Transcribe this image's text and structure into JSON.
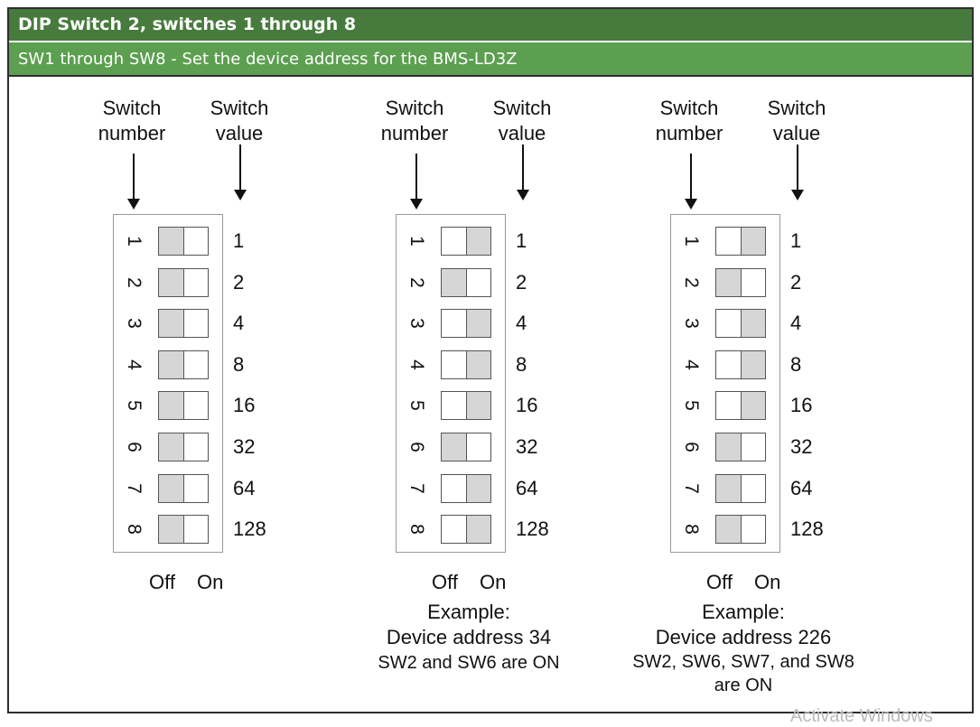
{
  "header": {
    "title": "DIP  Switch 2, switches 1 through 8",
    "subtitle": "SW1 through SW8 - Set the device address for the BMS-LD3Z"
  },
  "labels": {
    "switch_number": [
      "Switch",
      "number"
    ],
    "switch_value": [
      "Switch",
      "value"
    ],
    "off": "Off",
    "on": "On"
  },
  "switch_numbers": [
    "1",
    "2",
    "3",
    "4",
    "5",
    "6",
    "7",
    "8"
  ],
  "switch_values": [
    "1",
    "2",
    "4",
    "8",
    "16",
    "32",
    "64",
    "128"
  ],
  "colors": {
    "header": "#477b3d",
    "subheader": "#5c9f50",
    "switch_fill": "#d6d6d6"
  },
  "diagrams": [
    {
      "gray_side": [
        "left",
        "left",
        "left",
        "left",
        "left",
        "left",
        "left",
        "left"
      ],
      "example": null
    },
    {
      "gray_side": [
        "right",
        "left",
        "right",
        "right",
        "right",
        "left",
        "right",
        "right"
      ],
      "example": {
        "title": "Example:",
        "address": "Device address 34",
        "note": "SW2 and SW6 are ON"
      }
    },
    {
      "gray_side": [
        "right",
        "left",
        "right",
        "right",
        "right",
        "left",
        "left",
        "left"
      ],
      "example": {
        "title": "Example:",
        "address": "Device address 226",
        "note": "SW2, SW6, SW7, and SW8 are ON"
      }
    }
  ],
  "watermark": "Activate Windows"
}
